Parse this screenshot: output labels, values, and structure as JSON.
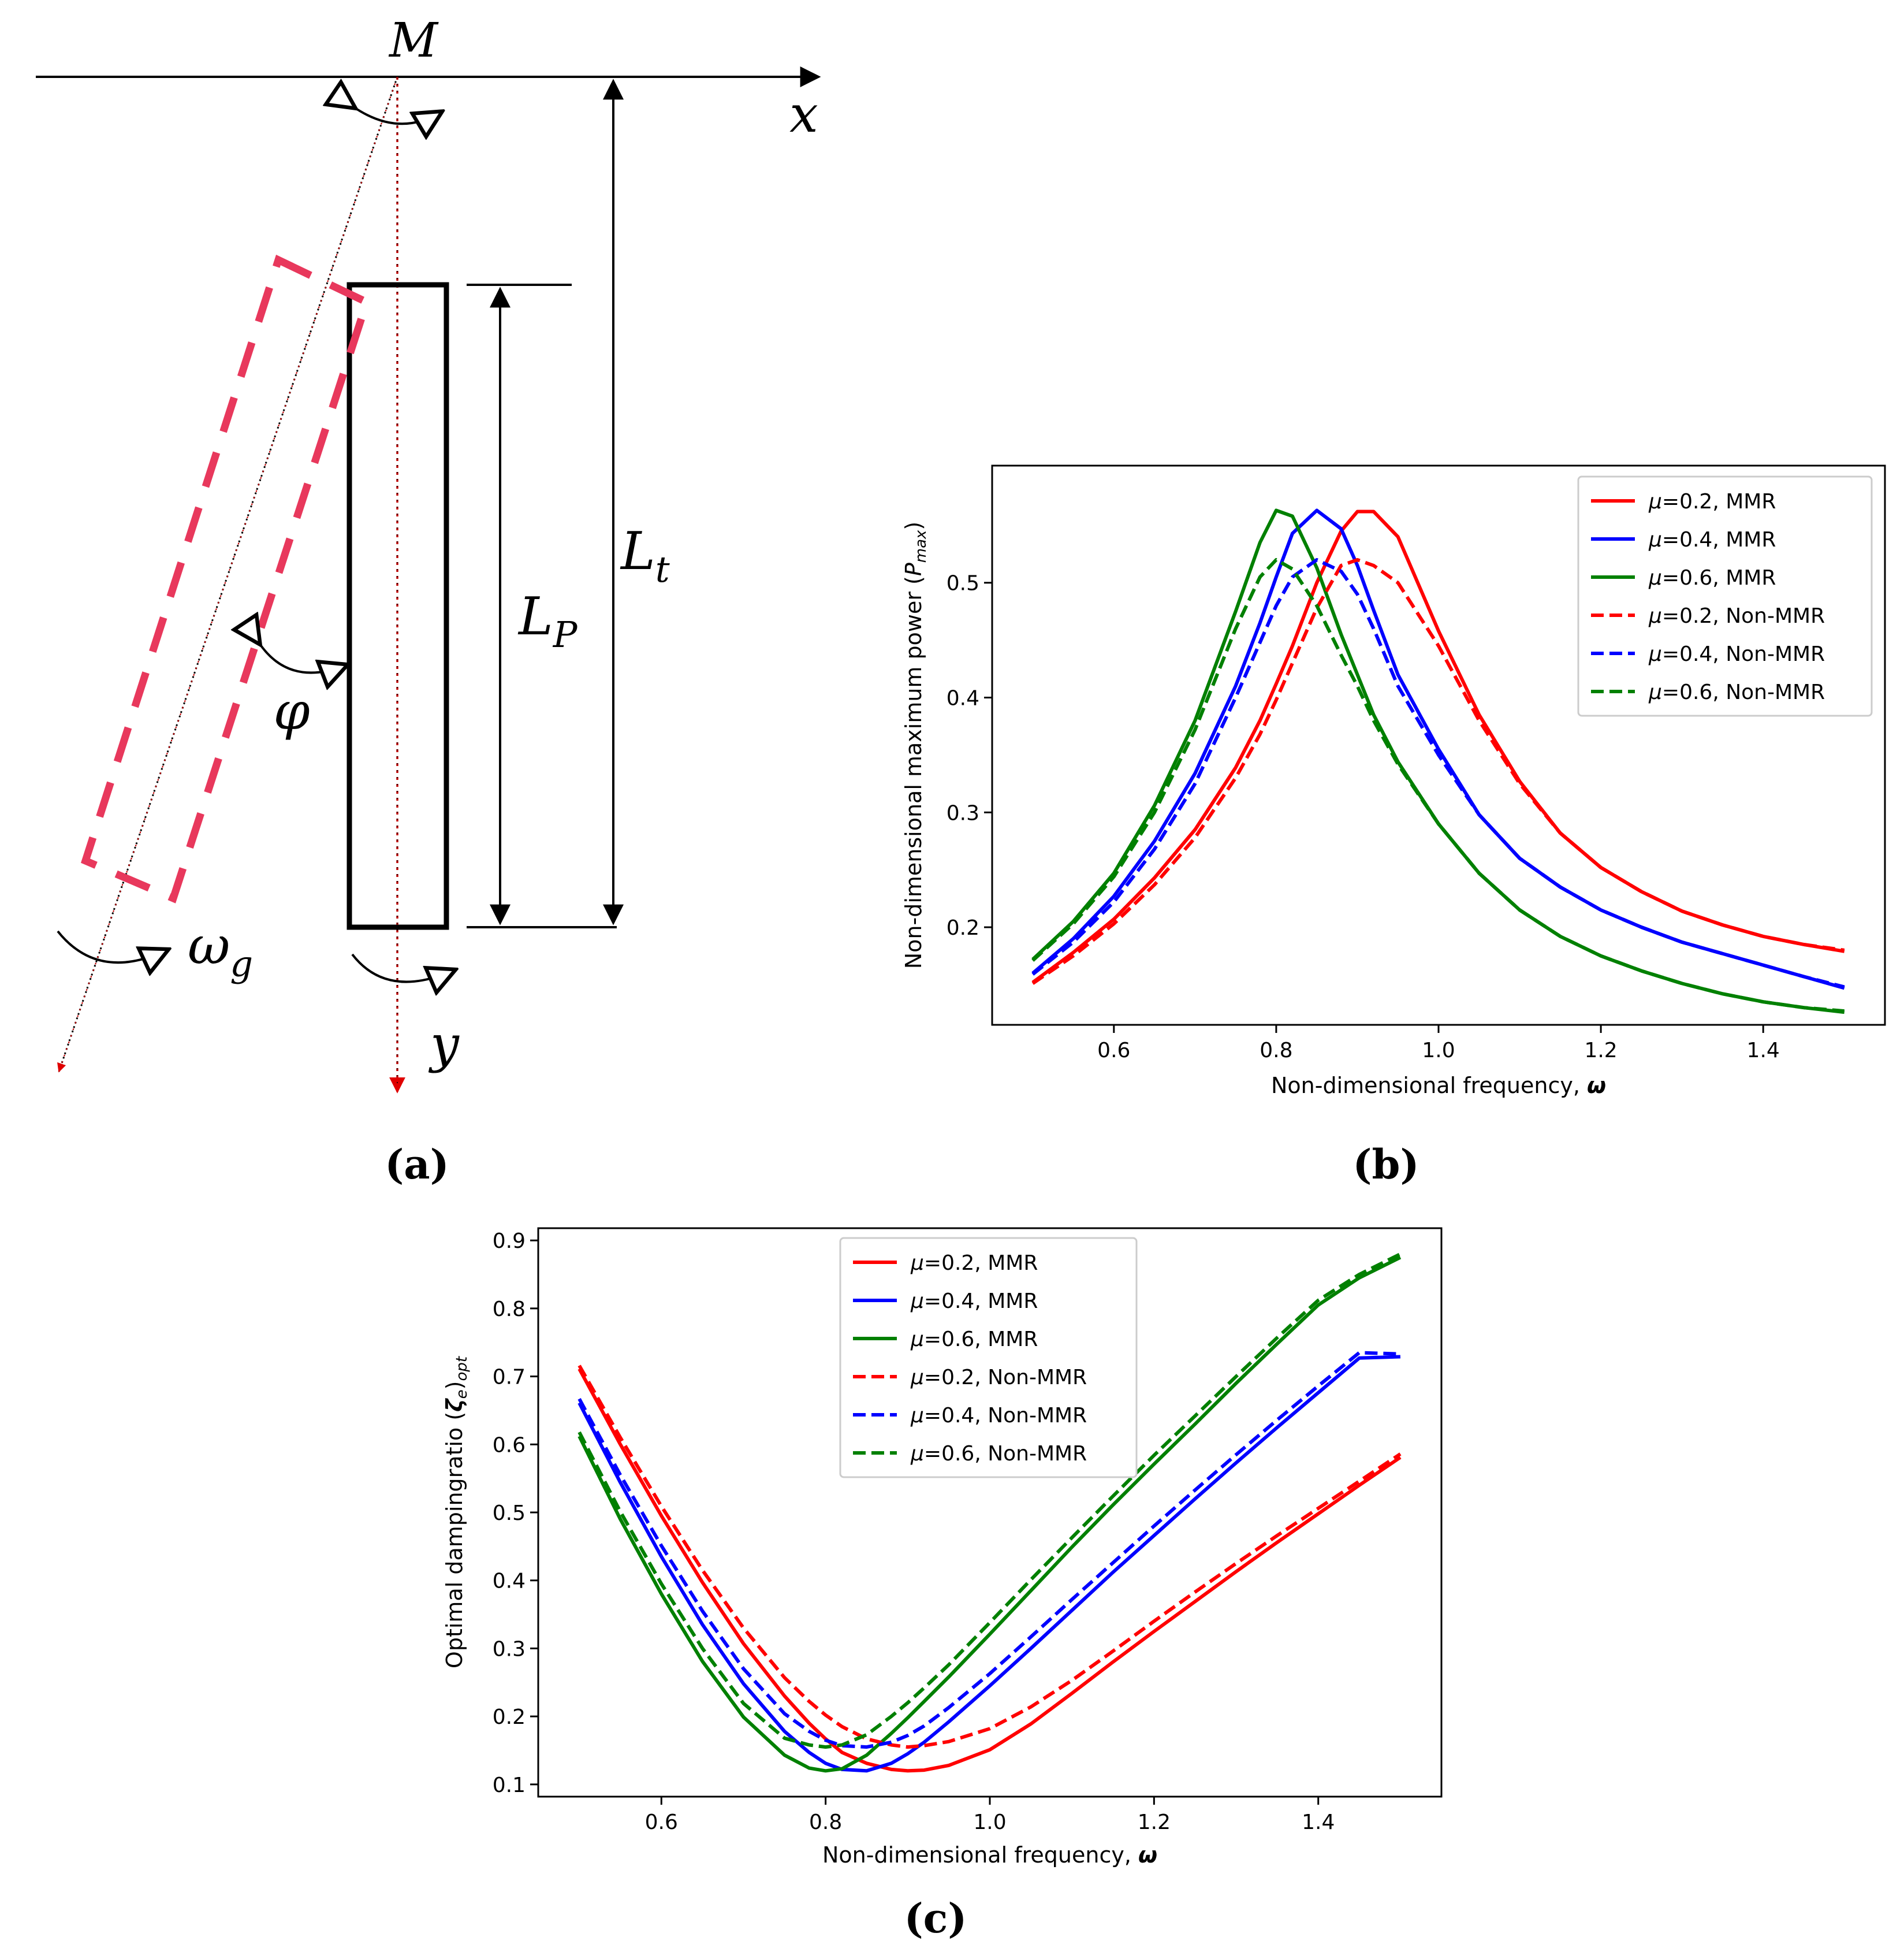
{
  "panel_labels": {
    "a": "(a)",
    "b": "(b)",
    "c": "(c)"
  },
  "diagram": {
    "label_M": "M",
    "label_x": "x",
    "label_y": "y",
    "label_Lt": "L",
    "label_Lt_sub": "t",
    "label_Lp": "L",
    "label_Lp_sub": "P",
    "label_phi": "φ",
    "label_omega": "ω",
    "label_omega_sub": "g"
  },
  "colors": {
    "red": "#ff0000",
    "blue": "#0000ff",
    "green": "#008000",
    "pink": "#e8385c",
    "axis": "#000000"
  },
  "chart_data": [
    {
      "id": "b",
      "type": "line",
      "xlabel": "Non-dimensional frequency, ",
      "xlabel_symbol": "ω",
      "ylabel": "Non-dimensional maximum power (",
      "ylabel_symbol": "P",
      "ylabel_sub": "max",
      "ylabel_end": ")",
      "xlim": [
        0.45,
        1.55
      ],
      "ylim": [
        0.115,
        0.602
      ],
      "xticks": [
        0.6,
        0.8,
        1.0,
        1.2,
        1.4
      ],
      "xtick_labels": [
        "0.6",
        "0.8",
        "1.0",
        "1.2",
        "1.4"
      ],
      "yticks": [
        0.2,
        0.3,
        0.4,
        0.5
      ],
      "ytick_labels": [
        "0.2",
        "0.3",
        "0.4",
        "0.5"
      ],
      "legend_position": "top-right",
      "x": [
        0.5,
        0.55,
        0.6,
        0.65,
        0.7,
        0.75,
        0.78,
        0.8,
        0.82,
        0.85,
        0.88,
        0.9,
        0.92,
        0.95,
        1.0,
        1.05,
        1.1,
        1.15,
        1.2,
        1.25,
        1.3,
        1.35,
        1.4,
        1.45,
        1.5
      ],
      "series": [
        {
          "name": "=0.2, MMR",
          "mu": "μ",
          "color": "red",
          "dash": "solid",
          "values": [
            0.152,
            0.178,
            0.207,
            0.243,
            0.285,
            0.339,
            0.38,
            0.412,
            0.445,
            0.5,
            0.545,
            0.562,
            0.562,
            0.54,
            0.458,
            0.385,
            0.327,
            0.282,
            0.252,
            0.231,
            0.214,
            0.202,
            0.192,
            0.185,
            0.179
          ]
        },
        {
          "name": "=0.4, MMR",
          "mu": "μ",
          "color": "blue",
          "dash": "solid",
          "values": [
            0.16,
            0.19,
            0.227,
            0.275,
            0.334,
            0.41,
            0.465,
            0.505,
            0.543,
            0.563,
            0.547,
            0.515,
            0.476,
            0.42,
            0.355,
            0.298,
            0.26,
            0.235,
            0.215,
            0.2,
            0.187,
            0.177,
            0.167,
            0.157,
            0.147
          ]
        },
        {
          "name": "=0.6, MMR",
          "mu": "μ",
          "color": "green",
          "dash": "solid",
          "values": [
            0.172,
            0.205,
            0.247,
            0.306,
            0.38,
            0.475,
            0.535,
            0.563,
            0.558,
            0.513,
            0.455,
            0.42,
            0.385,
            0.344,
            0.29,
            0.247,
            0.215,
            0.192,
            0.175,
            0.162,
            0.151,
            0.142,
            0.135,
            0.13,
            0.126
          ]
        },
        {
          "name": "=0.2, Non-MMR",
          "mu": "μ",
          "color": "red",
          "dash": "dashed",
          "values": [
            0.151,
            0.175,
            0.203,
            0.237,
            0.278,
            0.33,
            0.368,
            0.398,
            0.43,
            0.478,
            0.515,
            0.52,
            0.515,
            0.5,
            0.445,
            0.38,
            0.325,
            0.282,
            0.252,
            0.231,
            0.214,
            0.202,
            0.192,
            0.185,
            0.18
          ]
        },
        {
          "name": "=0.4, Non-MMR",
          "mu": "μ",
          "color": "blue",
          "dash": "dashed",
          "values": [
            0.159,
            0.187,
            0.222,
            0.268,
            0.325,
            0.4,
            0.448,
            0.48,
            0.505,
            0.52,
            0.51,
            0.49,
            0.46,
            0.41,
            0.35,
            0.298,
            0.26,
            0.235,
            0.215,
            0.2,
            0.187,
            0.177,
            0.167,
            0.157,
            0.148
          ]
        },
        {
          "name": "=0.6, Non-MMR",
          "mu": "μ",
          "color": "green",
          "dash": "dashed",
          "values": [
            0.171,
            0.203,
            0.244,
            0.3,
            0.372,
            0.46,
            0.505,
            0.52,
            0.512,
            0.48,
            0.437,
            0.41,
            0.38,
            0.342,
            0.29,
            0.247,
            0.215,
            0.192,
            0.175,
            0.162,
            0.151,
            0.142,
            0.135,
            0.13,
            0.127
          ]
        }
      ]
    },
    {
      "id": "c",
      "type": "line",
      "xlabel": "Non-dimensional frequency, ",
      "xlabel_symbol": "ω",
      "ylabel": "Optimal dampingratio (",
      "ylabel_symbol": "ζ",
      "ylabel_sub_e": "e",
      "ylabel_mid": ")",
      "ylabel_sub": "opt",
      "xlim": [
        0.45,
        1.55
      ],
      "ylim": [
        0.082,
        0.918
      ],
      "xticks": [
        0.6,
        0.8,
        1.0,
        1.2,
        1.4
      ],
      "xtick_labels": [
        "0.6",
        "0.8",
        "1.0",
        "1.2",
        "1.4"
      ],
      "yticks": [
        0.1,
        0.2,
        0.3,
        0.4,
        0.5,
        0.6,
        0.7,
        0.8,
        0.9
      ],
      "ytick_labels": [
        "0.1",
        "0.2",
        "0.3",
        "0.4",
        "0.5",
        "0.6",
        "0.7",
        "0.8",
        "0.9"
      ],
      "legend_position": "top-center",
      "x": [
        0.5,
        0.55,
        0.6,
        0.65,
        0.7,
        0.75,
        0.78,
        0.8,
        0.82,
        0.85,
        0.88,
        0.9,
        0.92,
        0.95,
        1.0,
        1.05,
        1.1,
        1.15,
        1.2,
        1.25,
        1.3,
        1.35,
        1.4,
        1.45,
        1.5
      ],
      "series": [
        {
          "name": "=0.2, MMR",
          "mu": "μ",
          "color": "red",
          "dash": "solid",
          "values": [
            0.711,
            0.6,
            0.495,
            0.397,
            0.307,
            0.23,
            0.19,
            0.167,
            0.147,
            0.131,
            0.122,
            0.12,
            0.121,
            0.128,
            0.151,
            0.189,
            0.234,
            0.28,
            0.325,
            0.369,
            0.413,
            0.456,
            0.498,
            0.54,
            0.581
          ]
        },
        {
          "name": "=0.4, MMR",
          "mu": "μ",
          "color": "blue",
          "dash": "solid",
          "values": [
            0.661,
            0.544,
            0.435,
            0.335,
            0.248,
            0.178,
            0.147,
            0.131,
            0.122,
            0.12,
            0.131,
            0.145,
            0.162,
            0.192,
            0.245,
            0.3,
            0.356,
            0.412,
            0.466,
            0.52,
            0.573,
            0.625,
            0.676,
            0.727,
            0.729
          ]
        },
        {
          "name": "=0.6, MMR",
          "mu": "μ",
          "color": "green",
          "dash": "solid",
          "values": [
            0.612,
            0.49,
            0.38,
            0.281,
            0.199,
            0.143,
            0.124,
            0.12,
            0.123,
            0.143,
            0.175,
            0.198,
            0.222,
            0.258,
            0.321,
            0.385,
            0.449,
            0.511,
            0.571,
            0.63,
            0.69,
            0.748,
            0.805,
            0.845,
            0.875
          ]
        },
        {
          "name": "=0.2, Non-MMR",
          "mu": "μ",
          "color": "red",
          "dash": "dashed",
          "values": [
            0.716,
            0.61,
            0.509,
            0.415,
            0.33,
            0.257,
            0.222,
            0.202,
            0.185,
            0.167,
            0.158,
            0.155,
            0.157,
            0.163,
            0.182,
            0.214,
            0.253,
            0.296,
            0.34,
            0.383,
            0.425,
            0.466,
            0.506,
            0.546,
            0.586
          ]
        },
        {
          "name": "=0.4, Non-MMR",
          "mu": "μ",
          "color": "blue",
          "dash": "dashed",
          "values": [
            0.667,
            0.555,
            0.451,
            0.355,
            0.27,
            0.204,
            0.178,
            0.165,
            0.157,
            0.155,
            0.162,
            0.172,
            0.186,
            0.213,
            0.263,
            0.317,
            0.372,
            0.426,
            0.48,
            0.533,
            0.585,
            0.636,
            0.686,
            0.735,
            0.733
          ]
        },
        {
          "name": "=0.6, Non-MMR",
          "mu": "μ",
          "color": "green",
          "dash": "dashed",
          "values": [
            0.618,
            0.501,
            0.395,
            0.3,
            0.219,
            0.168,
            0.158,
            0.155,
            0.158,
            0.173,
            0.2,
            0.22,
            0.242,
            0.276,
            0.338,
            0.401,
            0.463,
            0.524,
            0.584,
            0.642,
            0.7,
            0.757,
            0.812,
            0.85,
            0.88
          ]
        }
      ]
    }
  ]
}
